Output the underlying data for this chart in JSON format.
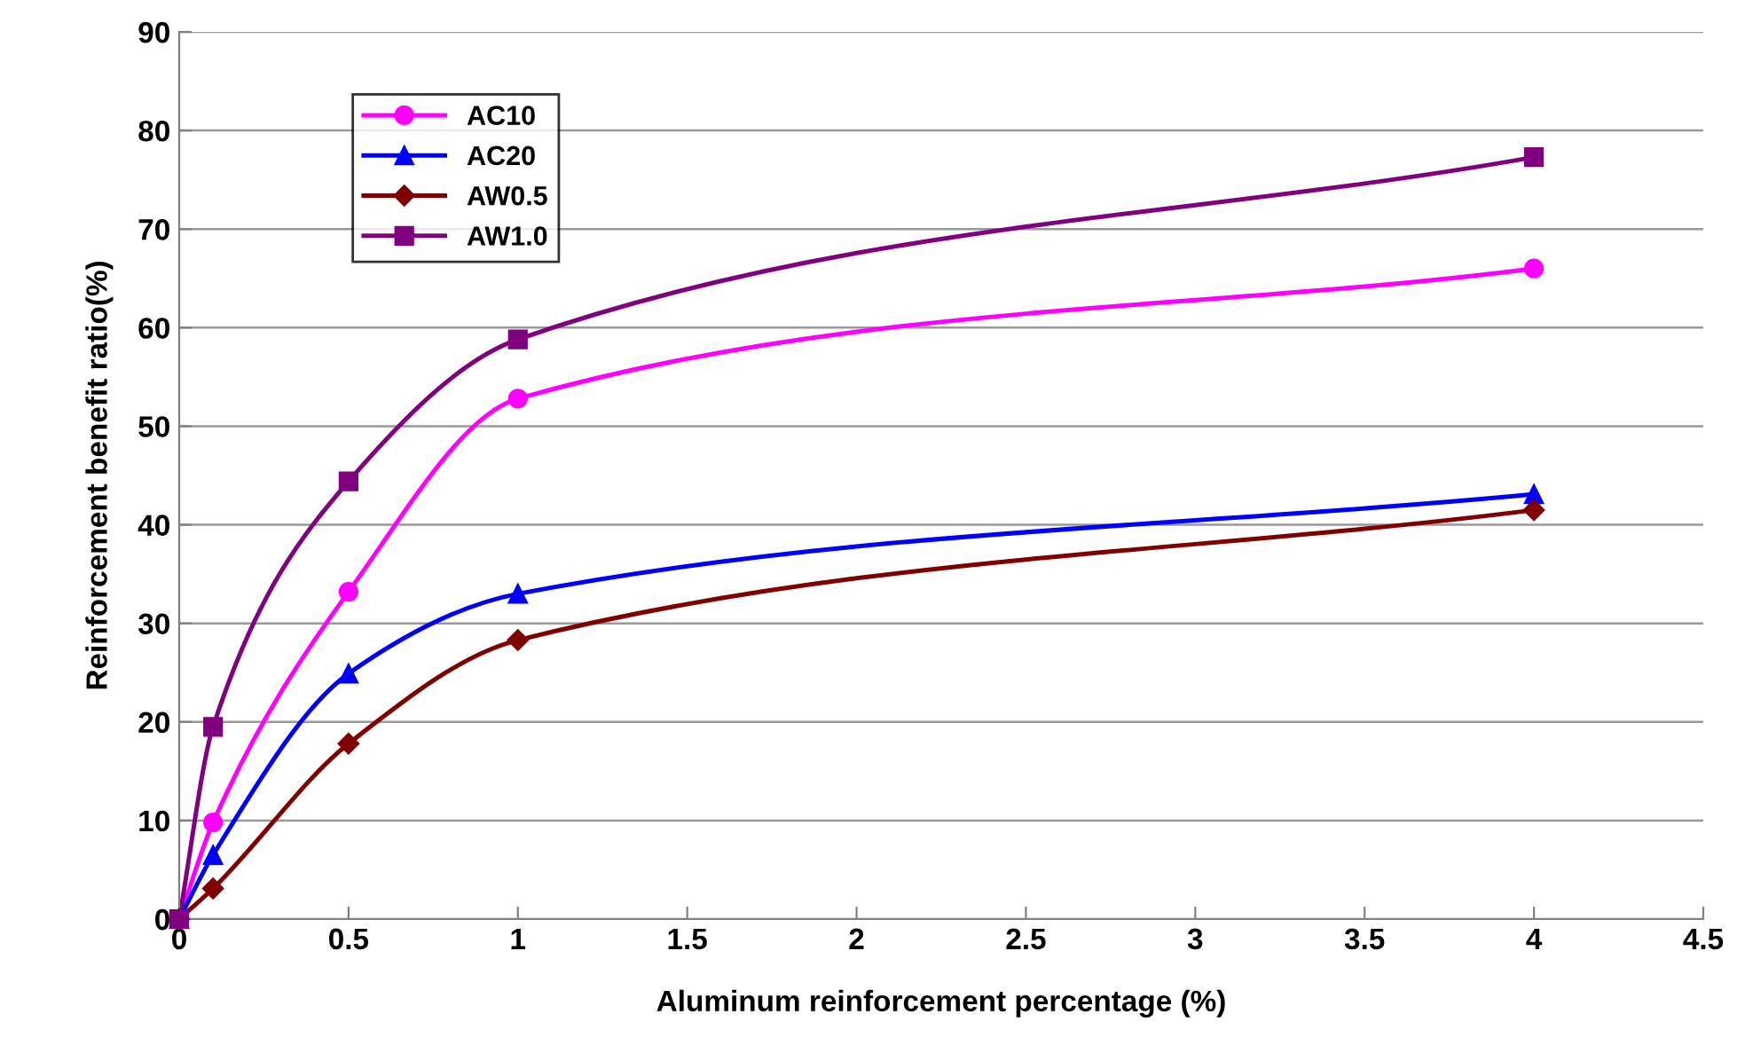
{
  "chart_data": {
    "type": "line",
    "xlabel": "Aluminum reinforcement percentage (%)",
    "ylabel": "Reinforcement benefit ratio(%)",
    "x": [
      0,
      0.1,
      0.5,
      1,
      4
    ],
    "series": [
      {
        "name": "AC10",
        "color": "#ff00ff",
        "marker": "circle",
        "values": [
          0,
          9.8,
          33.2,
          52.8,
          66
        ]
      },
      {
        "name": "AC20",
        "color": "#0000ff",
        "marker": "triangle",
        "values": [
          0,
          6.5,
          24.9,
          33,
          43.1
        ]
      },
      {
        "name": "AW0.5",
        "color": "#800000",
        "marker": "diamond",
        "values": [
          0,
          3.1,
          17.8,
          28.3,
          41.5
        ]
      },
      {
        "name": "AW1.0",
        "color": "#800080",
        "marker": "square",
        "values": [
          0,
          19.5,
          44.4,
          58.8,
          77.3
        ]
      }
    ],
    "xlim": [
      0,
      4.5
    ],
    "xticks": [
      0,
      0.5,
      1,
      1.5,
      2,
      2.5,
      3,
      3.5,
      4,
      4.5
    ],
    "ylim": [
      0,
      90
    ],
    "yticks": [
      0,
      10,
      20,
      30,
      40,
      50,
      60,
      70,
      80,
      90
    ],
    "grid": "y",
    "legend": "top left",
    "line_style": "solid"
  }
}
